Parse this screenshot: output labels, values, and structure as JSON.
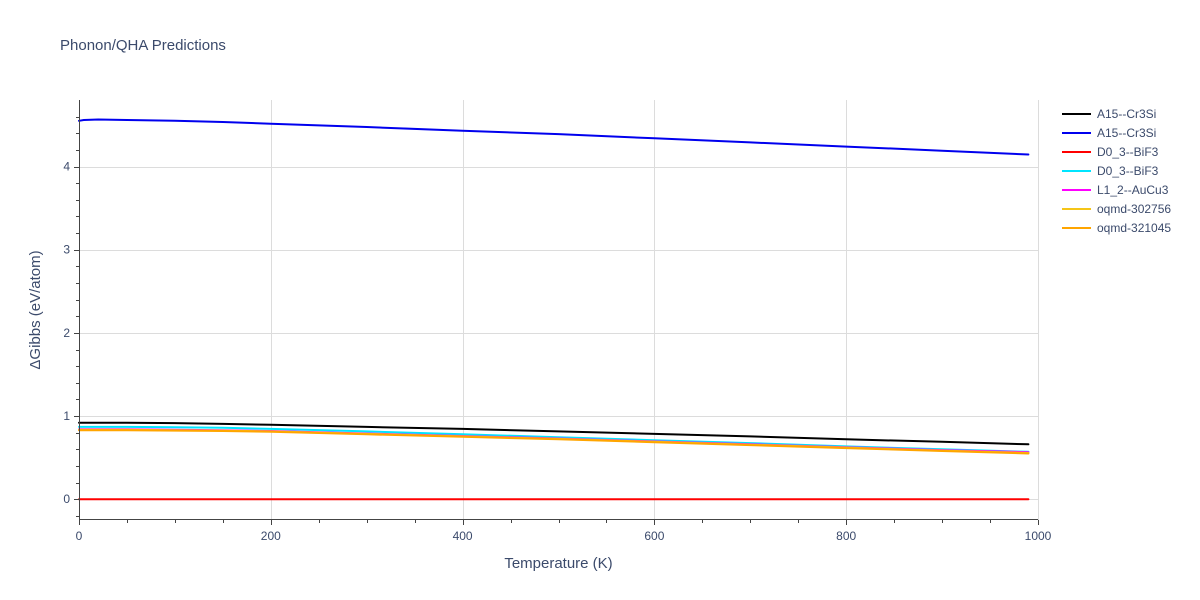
{
  "chart_data": {
    "type": "line",
    "title": "Phonon/QHA Predictions",
    "xlabel": "Temperature (K)",
    "ylabel": "ΔGibbs (eV/atom)",
    "xlim": [
      0,
      1000
    ],
    "ylim": [
      -0.25,
      4.8
    ],
    "xticks": [
      0,
      200,
      400,
      600,
      800,
      1000
    ],
    "yticks": [
      0,
      1,
      2,
      3,
      4
    ],
    "grid": true,
    "legend_position": "top-right",
    "series": [
      {
        "name": "A15--Cr3Si",
        "color": "#000000",
        "x": [
          0,
          10,
          50,
          100,
          150,
          200,
          300,
          400,
          500,
          600,
          700,
          800,
          900,
          990
        ],
        "y": [
          0.92,
          0.92,
          0.92,
          0.915,
          0.905,
          0.895,
          0.87,
          0.845,
          0.815,
          0.785,
          0.755,
          0.72,
          0.69,
          0.66
        ]
      },
      {
        "name": "A15--Cr3Si",
        "color": "#0000ee",
        "x": [
          0,
          5,
          20,
          50,
          100,
          150,
          200,
          300,
          400,
          500,
          600,
          700,
          800,
          900,
          990
        ],
        "y": [
          4.55,
          4.56,
          4.565,
          4.56,
          4.55,
          4.535,
          4.515,
          4.475,
          4.43,
          4.39,
          4.34,
          4.29,
          4.24,
          4.19,
          4.145
        ]
      },
      {
        "name": "D0_3--BiF3",
        "color": "#ff0000",
        "x": [
          0,
          200,
          400,
          600,
          800,
          990
        ],
        "y": [
          0,
          0,
          0,
          0,
          0,
          0
        ]
      },
      {
        "name": "D0_3--BiF3",
        "color": "#00e5ff",
        "x": [
          0,
          50,
          100,
          150,
          200,
          300,
          400,
          500,
          600,
          700,
          800,
          900,
          990
        ],
        "y": [
          0.87,
          0.87,
          0.865,
          0.86,
          0.845,
          0.815,
          0.78,
          0.745,
          0.71,
          0.675,
          0.635,
          0.6,
          0.57
        ]
      },
      {
        "name": "L1_2--AuCu3",
        "color": "#ff00ff",
        "x": [
          0,
          50,
          100,
          150,
          200,
          300,
          400,
          500,
          600,
          700,
          800,
          900,
          990
        ],
        "y": [
          0.84,
          0.84,
          0.835,
          0.83,
          0.82,
          0.79,
          0.76,
          0.73,
          0.695,
          0.66,
          0.625,
          0.59,
          0.565
        ]
      },
      {
        "name": "oqmd-302756",
        "color": "#f5c518",
        "x": [
          0,
          50,
          100,
          150,
          200,
          300,
          400,
          500,
          600,
          700,
          800,
          900,
          990
        ],
        "y": [
          0.835,
          0.835,
          0.83,
          0.825,
          0.815,
          0.785,
          0.755,
          0.725,
          0.69,
          0.655,
          0.62,
          0.585,
          0.555
        ]
      },
      {
        "name": "oqmd-321045",
        "color": "#ffa500",
        "x": [
          0,
          50,
          100,
          150,
          200,
          300,
          400,
          500,
          600,
          700,
          800,
          900,
          990
        ],
        "y": [
          0.83,
          0.83,
          0.825,
          0.82,
          0.81,
          0.78,
          0.75,
          0.72,
          0.685,
          0.65,
          0.615,
          0.58,
          0.55
        ]
      }
    ]
  }
}
